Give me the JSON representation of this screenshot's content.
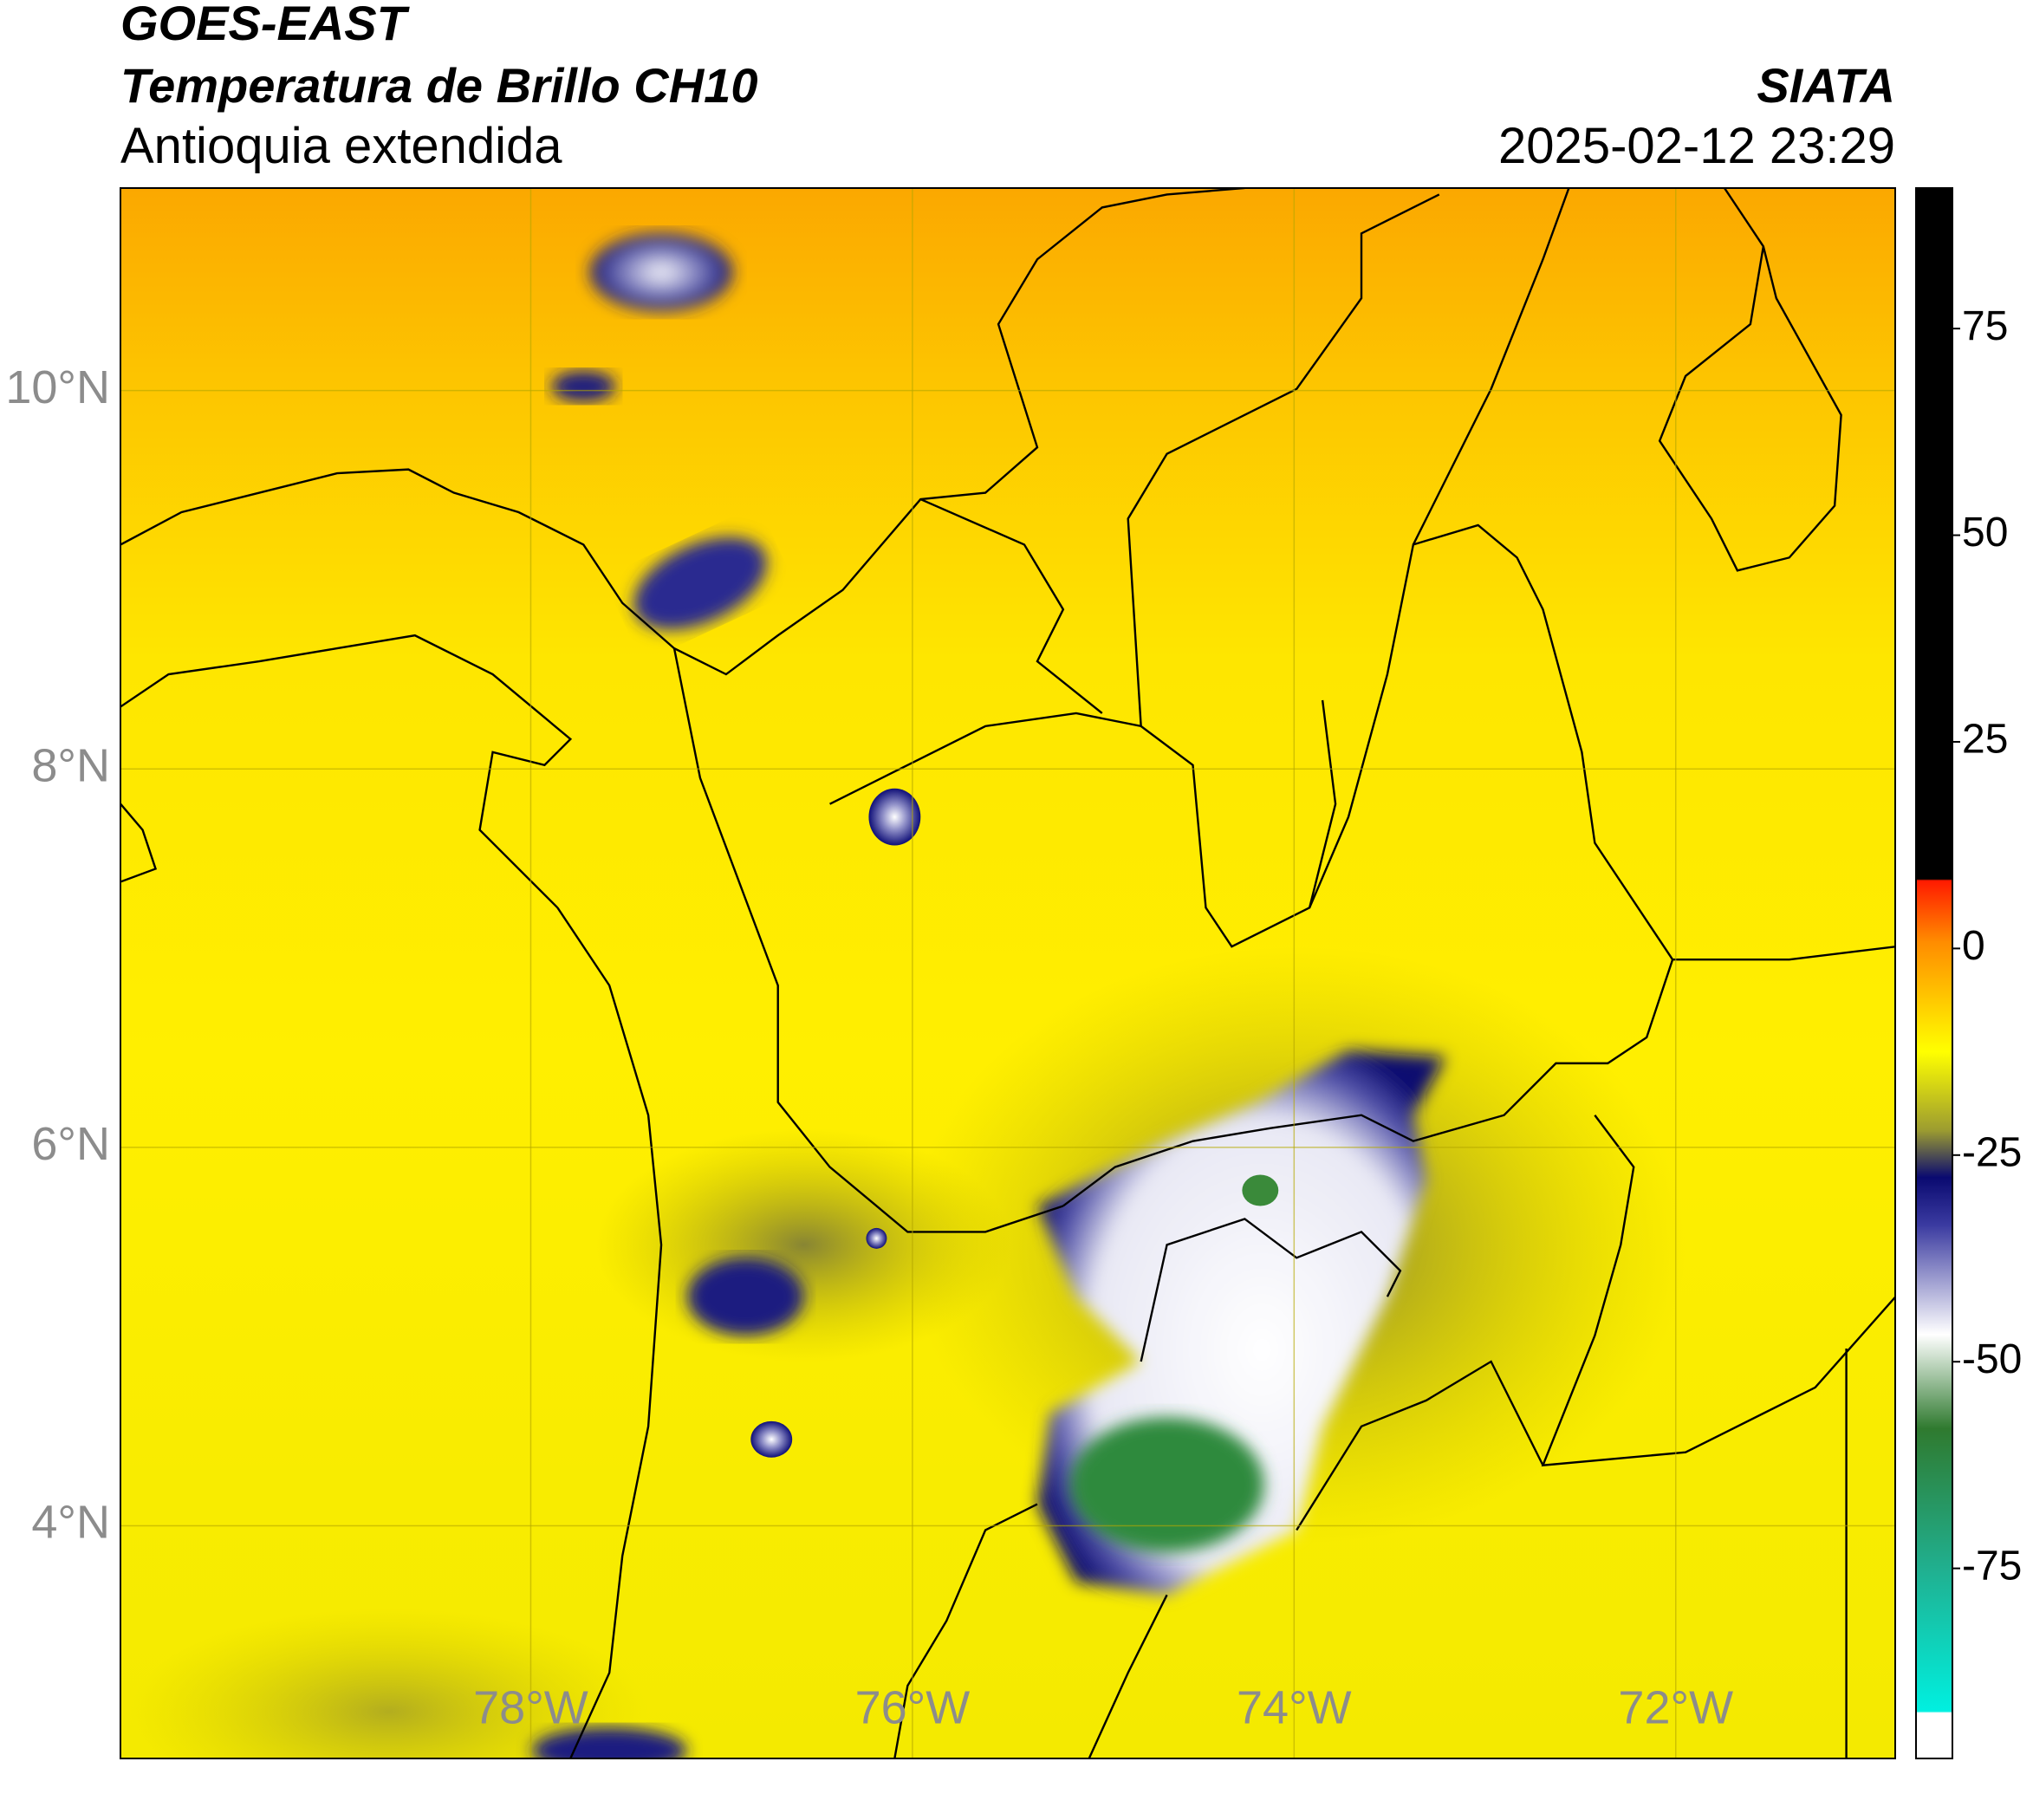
{
  "header": {
    "title": "GOES-EAST",
    "subtitle": "Temperatura de Brillo CH10",
    "region": "Antioquia extendida",
    "source": "SIATA",
    "datetime": "2025-02-12 23:29"
  },
  "map": {
    "xlim": [
      -80.15,
      -70.85
    ],
    "ylim": [
      2.77,
      11.07
    ],
    "xticks": [
      {
        "value": -78,
        "label": "78°W"
      },
      {
        "value": -76,
        "label": "76°W"
      },
      {
        "value": -74,
        "label": "74°W"
      },
      {
        "value": -72,
        "label": "72°W"
      }
    ],
    "yticks": [
      {
        "value": 4,
        "label": "4°N"
      },
      {
        "value": 6,
        "label": "6°N"
      },
      {
        "value": 8,
        "label": "8°N"
      },
      {
        "value": 10,
        "label": "10°N"
      }
    ],
    "grid": true
  },
  "colorbar": {
    "lim": [
      -98,
      92
    ],
    "ticks": [
      -75,
      -50,
      -25,
      0,
      25,
      50,
      75
    ]
  }
}
